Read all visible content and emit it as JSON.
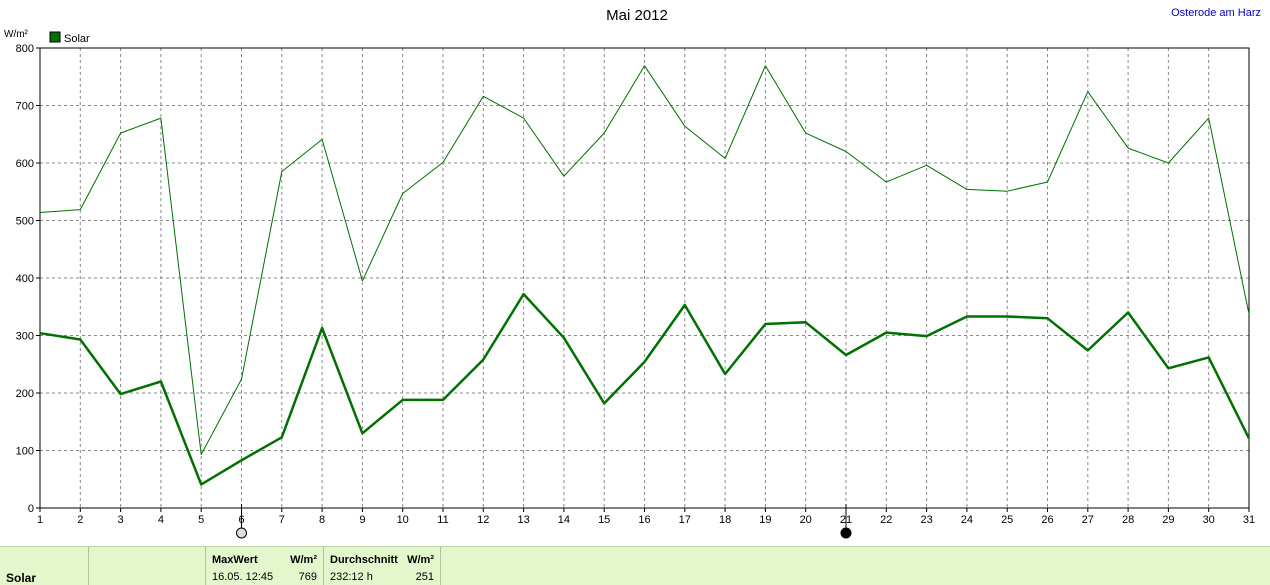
{
  "chart_data": {
    "type": "line",
    "title": "Mai 2012",
    "location": "Osterode am Harz",
    "ylabel": "W/m²",
    "ylim": [
      0,
      800
    ],
    "yticks": [
      0,
      100,
      200,
      300,
      400,
      500,
      600,
      700,
      800
    ],
    "x": [
      1,
      2,
      3,
      4,
      5,
      6,
      7,
      8,
      9,
      10,
      11,
      12,
      13,
      14,
      15,
      16,
      17,
      18,
      19,
      20,
      21,
      22,
      23,
      24,
      25,
      26,
      27,
      28,
      29,
      30,
      31
    ],
    "legend": "top-left",
    "grid": true,
    "series": [
      {
        "name": "",
        "style": "thin",
        "color": "#007000",
        "values": [
          514,
          519,
          652,
          678,
          93,
          224,
          585,
          641,
          395,
          547,
          601,
          716,
          678,
          577,
          652,
          769,
          664,
          608,
          769,
          652,
          620,
          567,
          596,
          554,
          551,
          567,
          724,
          626,
          600,
          678,
          337
        ]
      },
      {
        "name": "Solar",
        "style": "thick",
        "color": "#007000",
        "values": [
          304,
          293,
          198,
          220,
          41,
          83,
          123,
          313,
          130,
          188,
          188,
          258,
          372,
          296,
          182,
          254,
          353,
          233,
          320,
          323,
          266,
          305,
          299,
          333,
          333,
          330,
          274,
          340,
          243,
          262,
          121
        ]
      }
    ],
    "moon_markers": [
      {
        "day": 6,
        "phase": "full"
      },
      {
        "day": 21,
        "phase": "new"
      }
    ]
  },
  "stats": {
    "label": "Solar",
    "max_header": "MaxWert",
    "max_unit": "W/m²",
    "max_datetime": "16.05.  12:45",
    "max_value": "769",
    "avg_header": "Durchschnitt",
    "avg_unit": "W/m²",
    "avg_duration": "232:12 h",
    "avg_value": "251"
  }
}
